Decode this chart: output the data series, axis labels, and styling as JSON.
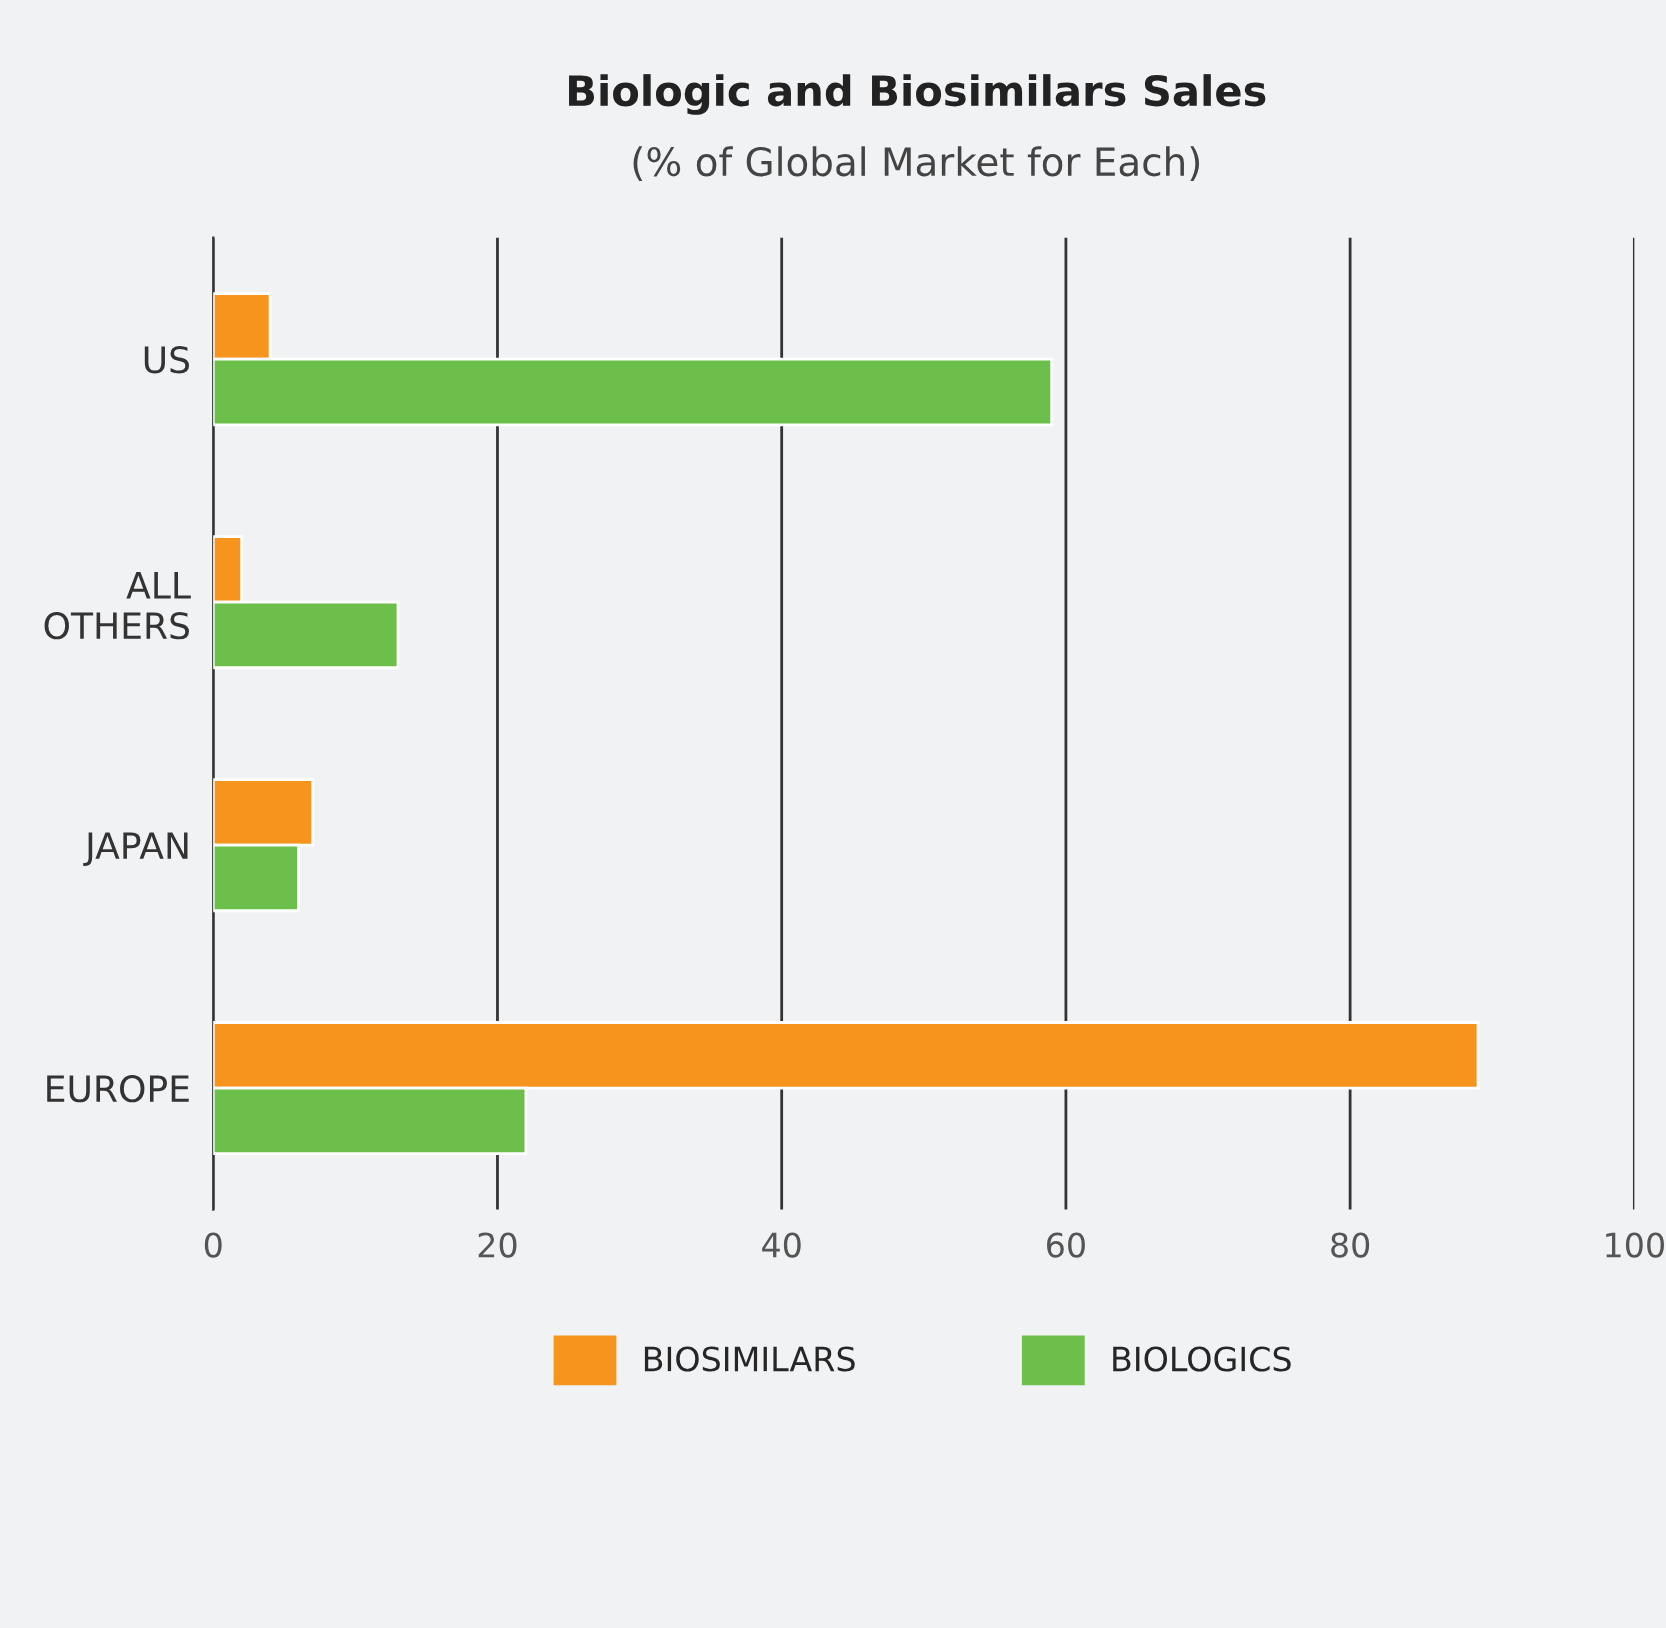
{
  "chart_data": {
    "type": "bar",
    "orientation": "horizontal",
    "title": "Biologic and Biosimilars Sales",
    "subtitle": "(% of Global Market for Each)",
    "categories": [
      "US",
      "ALL\nOTHERS",
      "JAPAN",
      "EUROPE"
    ],
    "series": [
      {
        "name": "BIOSIMILARS",
        "color": "#f7941d",
        "values": [
          4,
          2,
          7,
          89
        ]
      },
      {
        "name": "BIOLOGICS",
        "color": "#6cbf4a",
        "values": [
          59,
          13,
          6,
          22
        ]
      }
    ],
    "xlim": [
      0,
      100
    ],
    "xticks": [
      0,
      20,
      40,
      60,
      80,
      100
    ],
    "grid": "x",
    "legend": "bottom"
  }
}
